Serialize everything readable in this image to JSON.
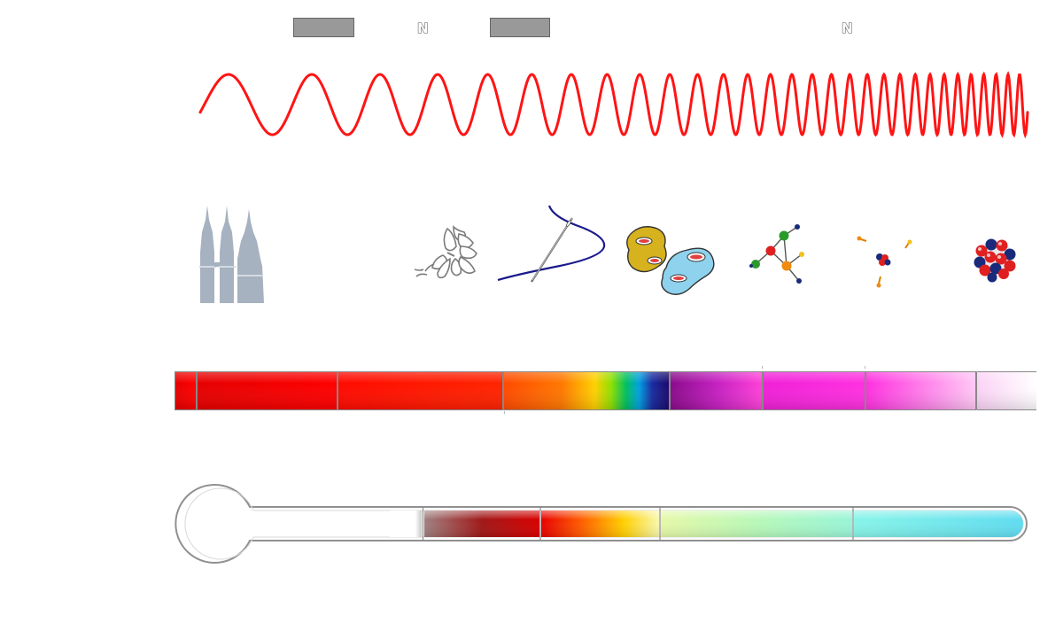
{
  "header": {
    "label_boxes": [
      {
        "text": ""
      },
      {
        "text": ""
      }
    ],
    "markers": [
      {
        "text": "N"
      },
      {
        "text": "N"
      }
    ]
  },
  "colors": {
    "wave": "#ff1414",
    "buildings": "#a6b2c0",
    "needle_thread": "#1a1a8c",
    "bar_outline": "#888888"
  },
  "scale_icons": [
    {
      "name": "buildings-icon"
    },
    {
      "name": "butterfly-icon"
    },
    {
      "name": "needle-icon"
    },
    {
      "name": "cells-icon"
    },
    {
      "name": "molecule-icon"
    },
    {
      "name": "atom-icon"
    },
    {
      "name": "nucleus-icon"
    }
  ],
  "spectrum_bar": {
    "segments": 8
  },
  "thermometer": {
    "segments": 5
  }
}
